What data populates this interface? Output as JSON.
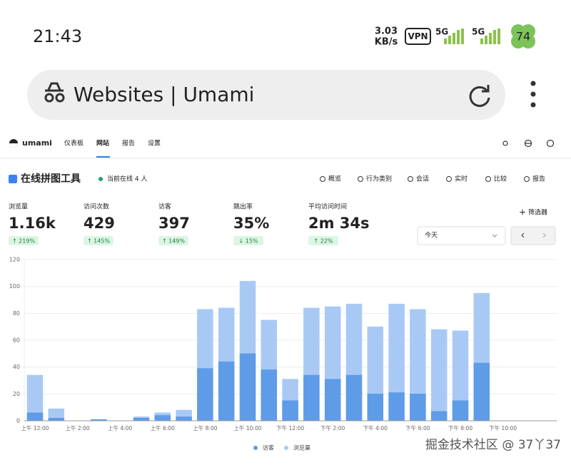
{
  "status_bar": {
    "time": "21:43",
    "speed_value": "3.03",
    "speed_unit": "KB/s",
    "vpn": "VPN",
    "network_1": "5G",
    "network_2": "5G",
    "battery": "74"
  },
  "browser": {
    "address": "Websites | Umami"
  },
  "nav": {
    "brand": "umami",
    "items": [
      "仪表板",
      "网站",
      "报告",
      "设置"
    ]
  },
  "header": {
    "title": "在线拼图工具",
    "online": "当前在线 4 人",
    "actions": [
      "概览",
      "行为类别",
      "会话",
      "实时",
      "比较",
      "报告"
    ]
  },
  "metrics": [
    {
      "label": "浏览量",
      "value": "1.16k",
      "change": "↑ 219%"
    },
    {
      "label": "访问次数",
      "value": "429",
      "change": "↑ 145%"
    },
    {
      "label": "访客",
      "value": "397",
      "change": "↑ 149%"
    },
    {
      "label": "跳出率",
      "value": "35%",
      "change": "↓ 15%"
    },
    {
      "label": "平均访问时间",
      "value": "2m 34s",
      "change": "↑ 22%"
    }
  ],
  "filter": "筛选器",
  "date_range": "今天",
  "chart_data": {
    "type": "bar",
    "categories": [
      "上午 12:00",
      null,
      "上午 2:00",
      null,
      "上午 4:00",
      null,
      "上午 6:00",
      null,
      "上午 8:00",
      null,
      "上午 10:00",
      null,
      "下午 12:00",
      null,
      "下午 2:00",
      null,
      "下午 4:00",
      null,
      "下午 6:00",
      null,
      "下午 8:00",
      null,
      "下午 10:00",
      null
    ],
    "series": [
      {
        "name": "访客",
        "color": "#5e9ce8",
        "values": [
          6,
          2,
          0,
          1,
          0,
          2,
          4,
          3,
          39,
          44,
          50,
          38,
          15,
          34,
          31,
          34,
          20,
          21,
          20,
          7,
          15,
          43,
          0,
          0
        ]
      },
      {
        "name": "浏览量",
        "color": "#a9c9f5",
        "values": [
          34,
          9,
          0,
          1,
          0,
          3,
          6,
          8,
          83,
          84,
          104,
          75,
          31,
          84,
          85,
          87,
          70,
          87,
          83,
          68,
          67,
          95,
          0,
          0
        ]
      }
    ],
    "ylim": [
      0,
      120
    ],
    "yticks": [
      0,
      20,
      40,
      60,
      80,
      100,
      120
    ],
    "grid": true
  },
  "watermark": "掘金技术社区 @ 37丫37"
}
